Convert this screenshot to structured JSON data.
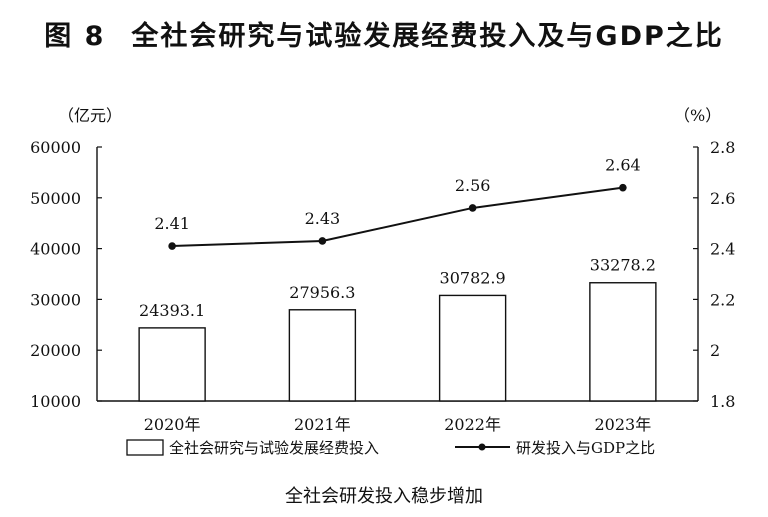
{
  "figure": {
    "number": "图 8",
    "title": "全社会研究与试验发展经费投入及与GDP之比",
    "caption": "全社会研发投入稳步增加"
  },
  "chart_data": {
    "type": "bar",
    "categories": [
      "2020年",
      "2021年",
      "2022年",
      "2023年"
    ],
    "left_axis": {
      "unit_label": "（亿元）",
      "min": 10000,
      "max": 60000,
      "ticks": [
        10000,
        20000,
        30000,
        40000,
        50000,
        60000
      ]
    },
    "right_axis": {
      "unit_label": "（%）",
      "min": 1.8,
      "max": 2.8,
      "ticks": [
        "1.8",
        "2",
        "2.2",
        "2.4",
        "2.6",
        "2.8"
      ]
    },
    "series": [
      {
        "name": "全社会研究与试验发展经费投入",
        "type": "bar",
        "axis": "left",
        "values": [
          24393.1,
          27956.3,
          30782.9,
          33278.2
        ],
        "labels": [
          "24393.1",
          "27956.3",
          "30782.9",
          "33278.2"
        ]
      },
      {
        "name": "研发投入与GDP之比",
        "type": "line",
        "axis": "right",
        "values": [
          2.41,
          2.43,
          2.56,
          2.64
        ],
        "labels": [
          "2.41",
          "2.43",
          "2.56",
          "2.64"
        ]
      }
    ],
    "grid": false,
    "legend": "bottom",
    "colors": {
      "bar_fill": "#ffffff",
      "bar_stroke": "#111111",
      "line": "#111111"
    }
  }
}
